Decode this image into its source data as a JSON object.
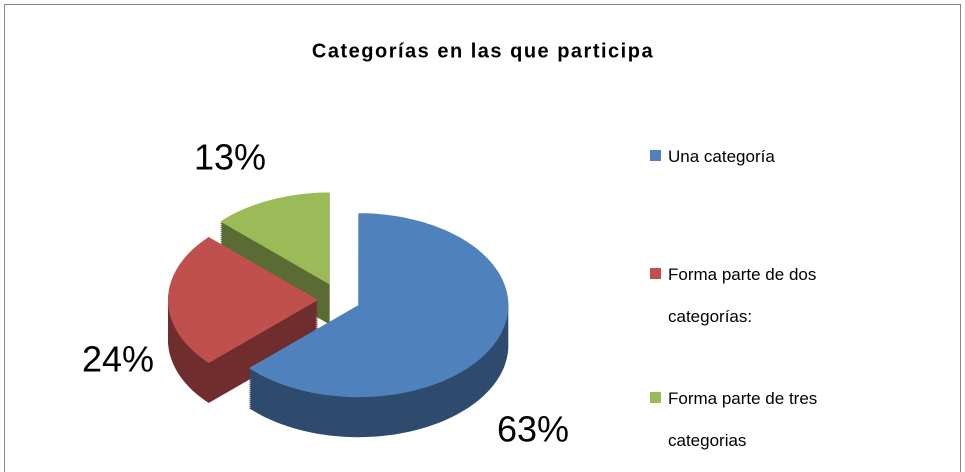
{
  "chart_data": {
    "type": "pie",
    "title": "Categorías en las que participa",
    "categories": [
      "Una categoría",
      "Forma parte de dos categorías:",
      "Forma parte de tres categorias"
    ],
    "values": [
      63,
      24,
      13
    ],
    "value_labels": [
      "63%",
      "24%",
      "13%"
    ],
    "colors": [
      "#4f81bd",
      "#c0504d",
      "#9bbb59"
    ],
    "legend": "right"
  }
}
